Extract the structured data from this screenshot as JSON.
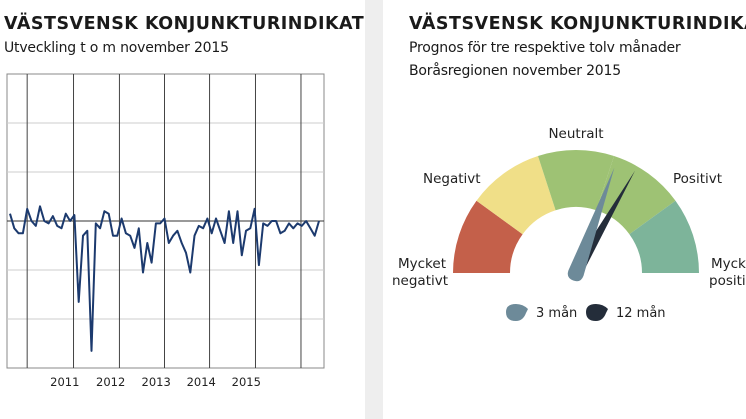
{
  "chart_data": [
    {
      "type": "line",
      "title": "VÄSTSVENSK KONJUNKTURINDIKATOR",
      "subtitle": "Utveckling t o m november 2015",
      "x_labels": [
        "2011",
        "2012",
        "2013",
        "2014",
        "2015"
      ],
      "ylim": [
        -30,
        30
      ],
      "grid": true,
      "series": [
        {
          "color": "#1c3a6e",
          "values": [
            1.5,
            -1.5,
            -2.5,
            -2.5,
            2.5,
            0,
            -1,
            3,
            0,
            -0.5,
            1,
            -1,
            -1.5,
            1.5,
            0,
            1.2,
            -16.5,
            -3,
            -2,
            -26.5,
            -0.5,
            -1.5,
            2,
            1.5,
            -3,
            -3,
            0.5,
            -2.5,
            -3,
            -5.5,
            -1.5,
            -10.5,
            -4.5,
            -8.5,
            -0.5,
            -0.5,
            0.5,
            -4.5,
            -3,
            -2,
            -4.5,
            -6.5,
            -10.5,
            -3,
            -1,
            -1.5,
            0.5,
            -2.5,
            0.5,
            -2,
            -4.5,
            2,
            -4.5,
            2,
            -7,
            -2,
            -1.5,
            2.5,
            -9,
            -0.5,
            -1,
            0,
            0,
            -2.5,
            -2,
            -0.5,
            -1.5,
            -0.5,
            -1,
            0,
            -1.5,
            -3,
            0
          ]
        }
      ]
    },
    {
      "type": "gauge",
      "title": "VÄSTSVENSK KONJUNKTURINDIKATOR",
      "subtitle_lines": [
        "Prognos för tre respektive tolv månader",
        "Boråsregionen november 2015"
      ],
      "categories": [
        "Mycket negativt",
        "Negativt",
        "Neutralt",
        "Positivt",
        "Mycket positivt"
      ],
      "category_labels": {
        "mycket_negativt": [
          "Mycket",
          "negativt"
        ],
        "negativt": "Negativt",
        "neutralt": "Neutralt",
        "positivt": "Positivt",
        "mycket_positivt": [
          "Mycket",
          "positivt"
        ]
      },
      "colors": [
        "#c4604a",
        "#f0df88",
        "#9ec274",
        "#9ec274",
        "#7db49a"
      ],
      "needle_3_man_deg": 20,
      "needle_12_man_deg": 30,
      "legend": [
        {
          "label": "3 mån",
          "color": "#6d8a99"
        },
        {
          "label": "12 mån",
          "color": "#242d3a"
        }
      ]
    }
  ]
}
